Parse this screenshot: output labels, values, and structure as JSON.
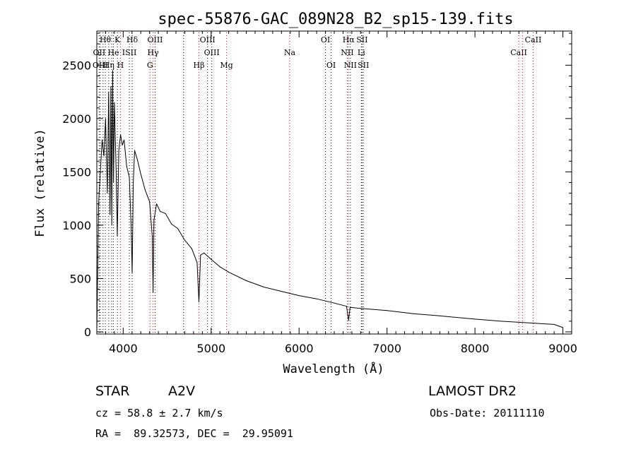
{
  "chart_data": {
    "type": "line",
    "title": "spec-55876-GAC_089N28_B2_sp15-139.fits",
    "xlabel": "Wavelength (Å)",
    "ylabel": "Flux (relative)",
    "xlim": [
      3700,
      9100
    ],
    "ylim": [
      -20,
      2820
    ],
    "x_ticks": [
      4000,
      5000,
      6000,
      7000,
      8000,
      9000
    ],
    "y_ticks": [
      0,
      500,
      1000,
      1500,
      2000,
      2500
    ],
    "grid": false,
    "series": [
      {
        "x": [
          3700,
          3720,
          3740,
          3760,
          3780,
          3800,
          3820,
          3835,
          3850,
          3860,
          3870,
          3880,
          3890,
          3900,
          3920,
          3933,
          3950,
          3970,
          3990,
          4010,
          4040,
          4070,
          4090,
          4102,
          4115,
          4130,
          4160,
          4200,
          4250,
          4300,
          4330,
          4340,
          4350,
          4380,
          4420,
          4480,
          4550,
          4620,
          4700,
          4780,
          4840,
          4861,
          4880,
          4920,
          5000,
          5100,
          5200,
          5400,
          5600,
          5800,
          6000,
          6200,
          6400,
          6540,
          6563,
          6580,
          6700,
          7000,
          7300,
          7600,
          8000,
          8300,
          8500,
          8700,
          8900,
          9000
        ],
        "y": [
          0,
          1200,
          1500,
          1800,
          1650,
          2000,
          1300,
          2250,
          1100,
          2300,
          1000,
          2450,
          1400,
          2150,
          1500,
          900,
          1700,
          1850,
          1750,
          1800,
          1550,
          1450,
          1000,
          550,
          1400,
          1700,
          1620,
          1480,
          1330,
          1220,
          900,
          370,
          1050,
          1200,
          1130,
          1110,
          1010,
          970,
          860,
          780,
          650,
          280,
          720,
          740,
          680,
          610,
          560,
          480,
          420,
          380,
          340,
          310,
          270,
          240,
          110,
          230,
          220,
          200,
          170,
          150,
          120,
          100,
          90,
          80,
          70,
          40
        ]
      }
    ],
    "line_markers": [
      {
        "label": "Hθ",
        "x": 3797,
        "row": 1,
        "color": "#000000"
      },
      {
        "label": "K",
        "x": 3934,
        "row": 1,
        "color": "#000000"
      },
      {
        "label": "Hδ",
        "x": 4102,
        "row": 1,
        "color": "#000000"
      },
      {
        "label": "OIII",
        "x": 4363,
        "row": 1,
        "color": "#000000"
      },
      {
        "label": "OIII",
        "x": 4959,
        "row": 1,
        "color": "#000000"
      },
      {
        "label": "OI",
        "x": 6300,
        "row": 1,
        "color": "#000000"
      },
      {
        "label": "Hα",
        "x": 6563,
        "row": 1,
        "color": "#ff0000"
      },
      {
        "label": "SII",
        "x": 6716,
        "row": 1,
        "color": "#000000"
      },
      {
        "label": "CaII",
        "x": 8662,
        "row": 1,
        "color": "#ff0000"
      },
      {
        "label": "OII",
        "x": 3727,
        "row": 2,
        "color": "#000000"
      },
      {
        "label": "He",
        "x": 3889,
        "row": 2,
        "color": "#000000"
      },
      {
        "label": "ISII",
        "x": 4070,
        "row": 2,
        "color": "#000000"
      },
      {
        "label": "Hγ",
        "x": 4340,
        "row": 2,
        "color": "#ff0000"
      },
      {
        "label": "OIII",
        "x": 5007,
        "row": 2,
        "color": "#000000"
      },
      {
        "label": "Na",
        "x": 5893,
        "row": 2,
        "color": "#ff0000"
      },
      {
        "label": "NII",
        "x": 6548,
        "row": 2,
        "color": "#000000"
      },
      {
        "label": "Li",
        "x": 6708,
        "row": 2,
        "color": "#000000"
      },
      {
        "label": "CaII",
        "x": 8498,
        "row": 2,
        "color": "#ff0000"
      },
      {
        "label": "OIII",
        "x": 3740,
        "row": 3,
        "color": "#000000"
      },
      {
        "label": "Hη",
        "x": 3835,
        "row": 3,
        "color": "#000000"
      },
      {
        "label": "H",
        "x": 3969,
        "row": 3,
        "color": "#ff0000"
      },
      {
        "label": "G",
        "x": 4305,
        "row": 3,
        "color": "#ff0000"
      },
      {
        "label": "Hβ",
        "x": 4861,
        "row": 3,
        "color": "#ff0000"
      },
      {
        "label": "Mg",
        "x": 5175,
        "row": 3,
        "color": "#ff0000"
      },
      {
        "label": "OI",
        "x": 6364,
        "row": 3,
        "color": "#000000"
      },
      {
        "label": "NII",
        "x": 6583,
        "row": 3,
        "color": "#000000"
      },
      {
        "label": "SII",
        "x": 6731,
        "row": 3,
        "color": "#000000"
      },
      {
        "label": "",
        "x": 3771,
        "row": 0,
        "color": "#000000"
      },
      {
        "label": "",
        "x": 3869,
        "row": 0,
        "color": "#000000"
      },
      {
        "label": "",
        "x": 4686,
        "row": 0,
        "color": "#000000"
      },
      {
        "label": "",
        "x": 8542,
        "row": 0,
        "color": "#ff0000"
      }
    ]
  },
  "info": {
    "class": "STAR",
    "subclass": "A2V",
    "survey": "LAMOST DR2",
    "cz": "cz = 58.8 ± 2.7 km/s",
    "obs_date": "Obs-Date: 20111110",
    "coords": "RA =  89.32573, DEC =  29.95091"
  }
}
